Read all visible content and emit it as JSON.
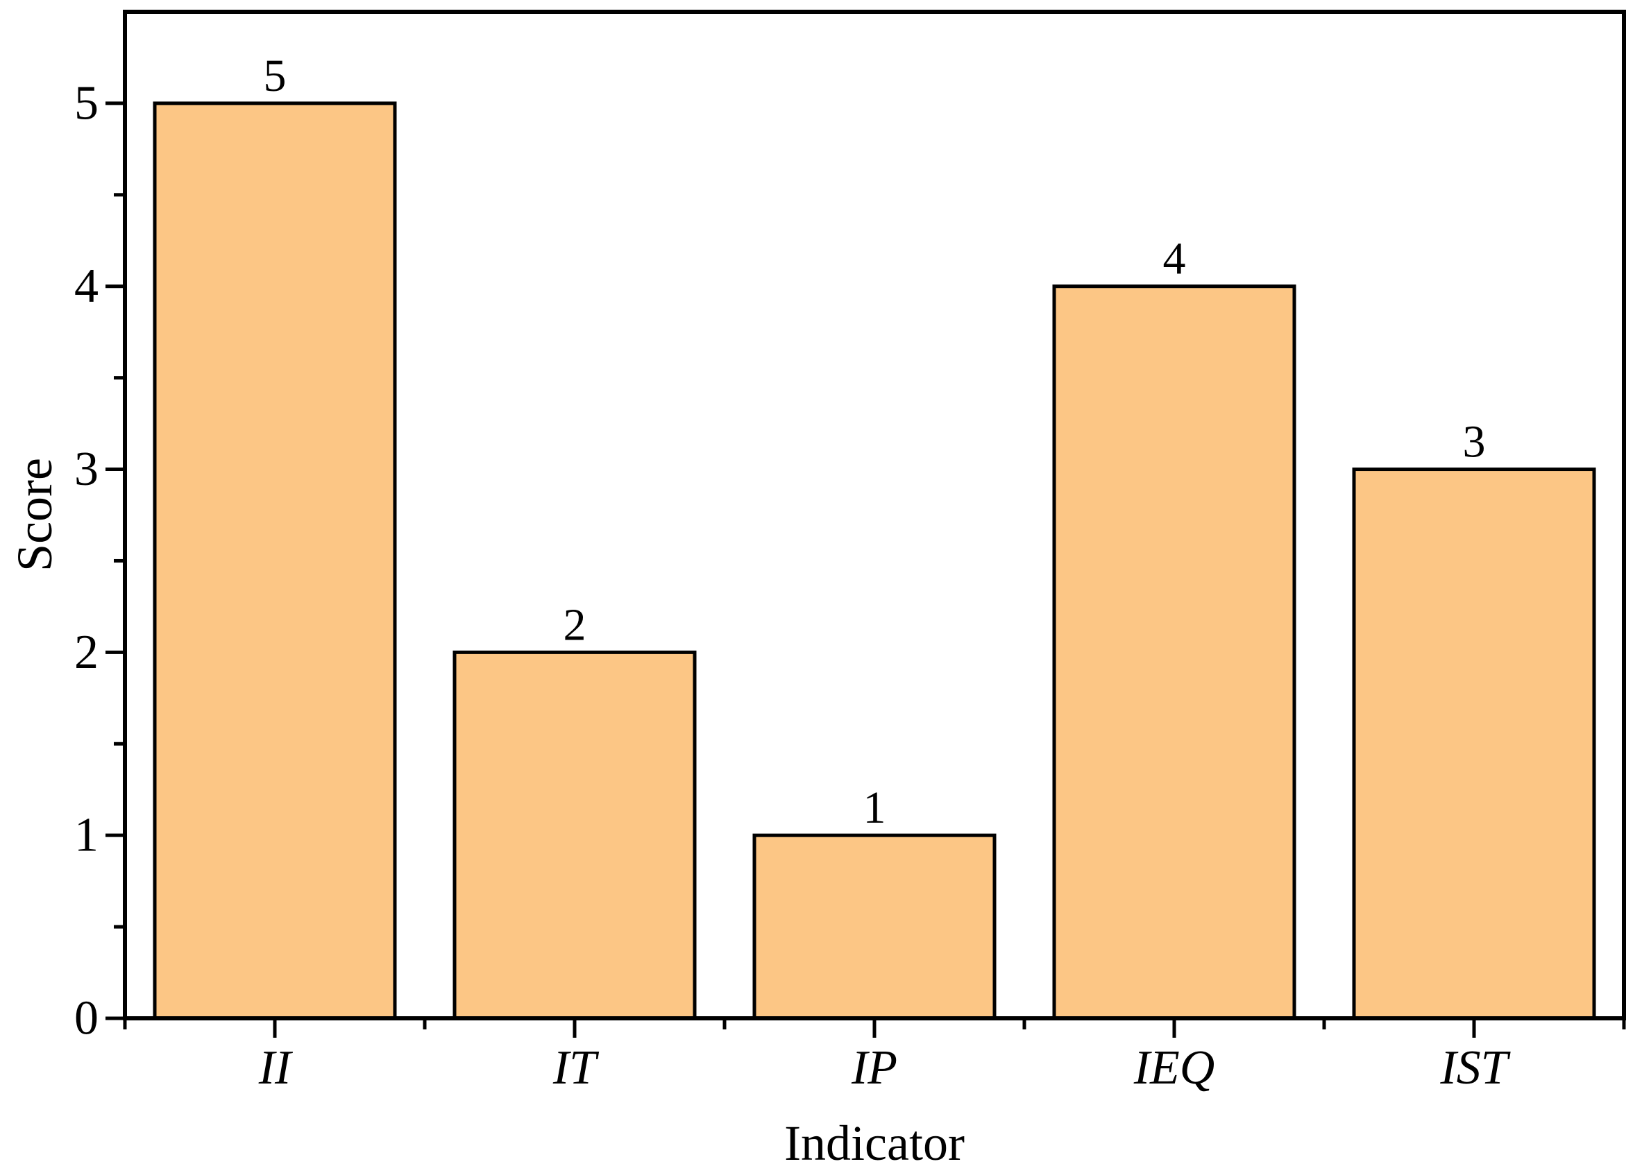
{
  "chart_data": {
    "type": "bar",
    "title": "",
    "categories": [
      "II",
      "IT",
      "IP",
      "IEQ",
      "IST"
    ],
    "values": [
      5,
      2,
      1,
      4,
      3
    ],
    "bar_value_labels": [
      "5",
      "2",
      "1",
      "4",
      "3"
    ],
    "xlabel": "Indicator",
    "ylabel": "Score",
    "ylim": [
      0,
      5.5
    ],
    "yticks_major": [
      0,
      1,
      2,
      3,
      4,
      5
    ],
    "ytick_labels": [
      "0",
      "1",
      "2",
      "3",
      "4",
      "5"
    ],
    "ytick_minor_step": 0.5,
    "grid": false,
    "legend": null,
    "colors": {
      "bar_fill": "#FCC685",
      "bar_edge": "#000000",
      "axis": "#000000",
      "text": "#000000",
      "background": "#FFFFFF"
    }
  }
}
